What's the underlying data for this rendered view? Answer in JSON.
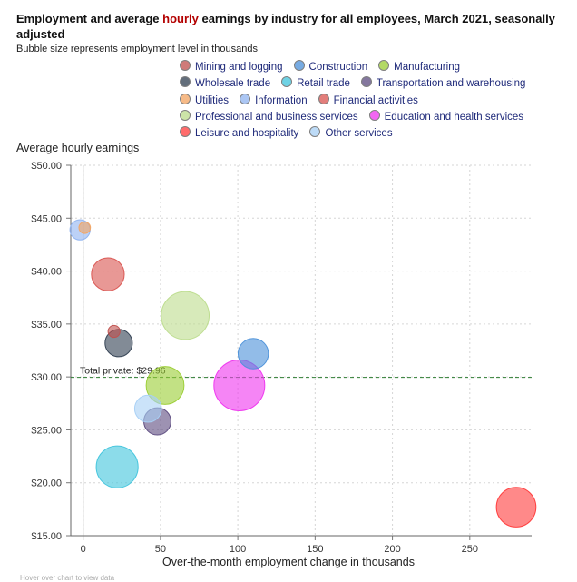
{
  "title_pre": "Employment and average ",
  "title_highlight": "hourly",
  "title_post": " earnings by industry for all employees, March 2021, seasonally adjusted",
  "subtitle": "Bubble size represents employment level in thousands",
  "hint": "Hover over chart to view data",
  "chart_data": {
    "type": "scatter",
    "title": "Employment and average hourly earnings by industry for all employees, March 2021, seasonally adjusted",
    "subtitle": "Bubble size represents employment level in thousands",
    "xlabel": "Over-the-month employment change in thousands",
    "ylabel": "Average hourly earnings",
    "xlim": [
      -8,
      290
    ],
    "ylim": [
      15,
      50
    ],
    "xticks": [
      0,
      50,
      100,
      150,
      200,
      250
    ],
    "xtick_labels": [
      "0",
      "50",
      "100",
      "150",
      "200",
      "250"
    ],
    "yticks": [
      15,
      20,
      25,
      30,
      35,
      40,
      45,
      50
    ],
    "ytick_labels": [
      "$15.00",
      "$20.00",
      "$25.00",
      "$30.00",
      "$35.00",
      "$40.00",
      "$45.00",
      "$50.00"
    ],
    "grid": true,
    "legend_position": "top",
    "reference_line": {
      "y": 29.96,
      "label": "Total private: $29.96",
      "color": "#2e7d32"
    },
    "series": [
      {
        "name": "Mining and logging",
        "color": "#c0504d",
        "x": 20,
        "y": 34.3,
        "size": 620
      },
      {
        "name": "Construction",
        "color": "#4a90d9",
        "x": 110,
        "y": 32.2,
        "size": 7300
      },
      {
        "name": "Manufacturing",
        "color": "#9acd32",
        "x": 53,
        "y": 29.2,
        "size": 12200
      },
      {
        "name": "Wholesale trade",
        "color": "#2f3e50",
        "x": 23,
        "y": 33.2,
        "size": 5700
      },
      {
        "name": "Retail trade",
        "color": "#40c4dc",
        "x": 22,
        "y": 21.5,
        "size": 15300
      },
      {
        "name": "Transportation and warehousing",
        "color": "#5b4a7e",
        "x": 48,
        "y": 25.8,
        "size": 5600
      },
      {
        "name": "Utilities",
        "color": "#f4a460",
        "x": 1,
        "y": 44.1,
        "size": 540
      },
      {
        "name": "Information",
        "color": "#8fb3f0",
        "x": -2,
        "y": 43.9,
        "size": 2700
      },
      {
        "name": "Financial activities",
        "color": "#d9534f",
        "x": 16,
        "y": 39.7,
        "size": 8800
      },
      {
        "name": "Professional and business services",
        "color": "#bcdc8c",
        "x": 66,
        "y": 35.8,
        "size": 20600
      },
      {
        "name": "Education and health services",
        "color": "#ee33ee",
        "x": 101,
        "y": 29.2,
        "size": 23500
      },
      {
        "name": "Leisure and hospitality",
        "color": "#ff3b3b",
        "x": 280,
        "y": 17.7,
        "size": 13500
      },
      {
        "name": "Other services",
        "color": "#a8d0f5",
        "x": 42,
        "y": 27.0,
        "size": 5500
      }
    ]
  }
}
